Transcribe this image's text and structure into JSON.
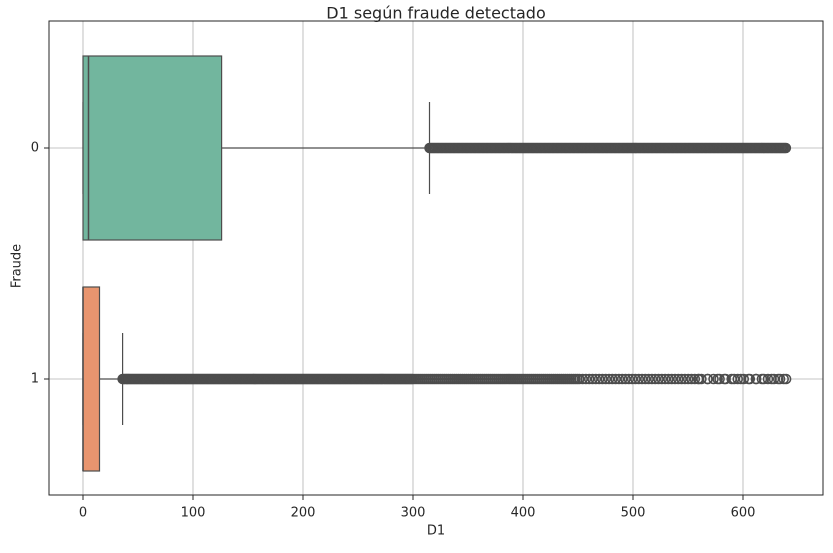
{
  "chart_data": {
    "type": "boxplot",
    "orientation": "horizontal",
    "title": "D1 según fraude detectado",
    "xlabel": "D1",
    "ylabel": "Fraude",
    "xlim": [
      -30,
      655
    ],
    "xticks": [
      0,
      100,
      200,
      300,
      400,
      500,
      600
    ],
    "grid": true,
    "categories": [
      "0",
      "1"
    ],
    "boxes": [
      {
        "category": "0",
        "color": "#72b69e",
        "edge_color": "#4d4d4d",
        "min": 0,
        "q1": 0,
        "median": 5,
        "q3": 126,
        "whisker_high": 315,
        "outliers_range": [
          315,
          640
        ],
        "outlier_style": "dense"
      },
      {
        "category": "1",
        "color": "#e8956f",
        "edge_color": "#4d4d4d",
        "min": 0,
        "q1": 0,
        "median": 0,
        "q3": 15,
        "whisker_high": 36,
        "outliers_range": [
          36,
          640
        ],
        "outlier_style": "dense-then-sparse"
      }
    ]
  }
}
